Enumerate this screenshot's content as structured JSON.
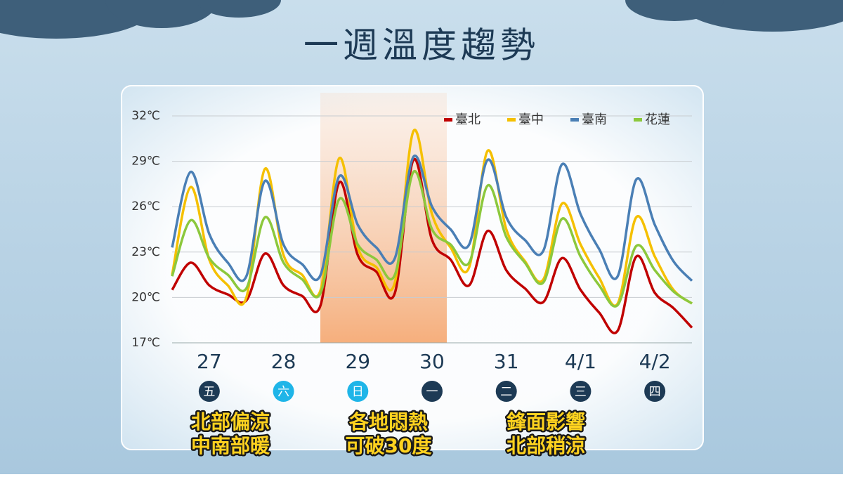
{
  "chart_data": {
    "type": "line",
    "title": "一週溫度趨勢",
    "categories": [
      null,
      null,
      "27",
      null,
      null,
      null,
      "28",
      null,
      null,
      null,
      "29",
      null,
      null,
      null,
      "30",
      null,
      null,
      null,
      "31",
      null,
      null,
      null,
      "4/1",
      null,
      null,
      null,
      "4/2",
      null,
      null
    ],
    "weekdays": [
      {
        "label": "五",
        "color": "#1d3a55"
      },
      {
        "label": "六",
        "color": "#1fb5e8"
      },
      {
        "label": "日",
        "color": "#1fb5e8"
      },
      {
        "label": "一",
        "color": "#1d3a55"
      },
      {
        "label": "二",
        "color": "#1d3a55"
      },
      {
        "label": "三",
        "color": "#1d3a55"
      },
      {
        "label": "四",
        "color": "#1d3a55"
      }
    ],
    "ylim": [
      17,
      32
    ],
    "yticks": [
      {
        "value": 17,
        "label": "17℃"
      },
      {
        "value": 20,
        "label": "20℃"
      },
      {
        "value": 23,
        "label": "23℃"
      },
      {
        "value": 26,
        "label": "26℃"
      },
      {
        "value": 29,
        "label": "29℃"
      },
      {
        "value": 32,
        "label": "32℃"
      }
    ],
    "grid": true,
    "legend": "top-right",
    "series": [
      {
        "name": "臺北",
        "color": "#c00000",
        "values": [
          20.5,
          22.3,
          20.8,
          20.2,
          19.8,
          22.9,
          20.8,
          20.1,
          19.5,
          27.6,
          22.8,
          21.7,
          20.3,
          29.1,
          23.8,
          22.5,
          20.8,
          24.4,
          21.8,
          20.6,
          19.7,
          22.6,
          20.5,
          19.0,
          17.8,
          22.7,
          20.3,
          19.3,
          18.0
        ]
      },
      {
        "name": "臺中",
        "color": "#f5c000",
        "values": [
          21.5,
          27.3,
          22.5,
          20.8,
          20.0,
          28.5,
          22.8,
          21.5,
          20.5,
          29.2,
          23.3,
          22.0,
          21.0,
          31.0,
          25.5,
          23.3,
          22.0,
          29.7,
          24.5,
          22.4,
          21.2,
          26.2,
          23.5,
          21.3,
          19.6,
          25.3,
          22.7,
          20.5,
          19.6
        ]
      },
      {
        "name": "臺南",
        "color": "#4a7fb5",
        "values": [
          23.3,
          28.3,
          24.2,
          22.3,
          21.4,
          27.7,
          23.5,
          22.2,
          21.5,
          28.0,
          24.8,
          23.3,
          22.6,
          29.3,
          26.0,
          24.5,
          23.5,
          29.1,
          25.3,
          23.8,
          23.1,
          28.8,
          25.5,
          23.2,
          21.4,
          27.8,
          24.8,
          22.4,
          21.1
        ]
      },
      {
        "name": "花蓮",
        "color": "#8cc83c",
        "values": [
          21.4,
          25.1,
          22.6,
          21.5,
          20.6,
          25.3,
          22.3,
          21.2,
          20.3,
          26.5,
          23.5,
          22.5,
          21.5,
          28.3,
          24.5,
          23.5,
          22.3,
          27.4,
          24.0,
          22.3,
          21.0,
          25.2,
          22.7,
          20.8,
          19.5,
          23.4,
          21.8,
          20.4,
          19.6
        ]
      }
    ],
    "annotations": [
      [
        "北部偏涼",
        "中南部暖"
      ],
      [
        "各地悶熱",
        "可破30度"
      ],
      [
        "鋒面影響",
        "北部稍涼"
      ]
    ]
  }
}
